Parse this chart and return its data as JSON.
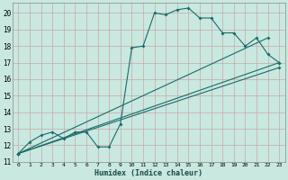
{
  "xlabel": "Humidex (Indice chaleur)",
  "bg_color": "#c8e8e0",
  "grid_color": "#b0c8c0",
  "line_color": "#1a6b6b",
  "xlim": [
    -0.5,
    23.5
  ],
  "ylim": [
    11,
    20.6
  ],
  "xticks": [
    0,
    1,
    2,
    3,
    4,
    5,
    6,
    7,
    8,
    9,
    10,
    11,
    12,
    13,
    14,
    15,
    16,
    17,
    18,
    19,
    20,
    21,
    22,
    23
  ],
  "yticks": [
    11,
    12,
    13,
    14,
    15,
    16,
    17,
    18,
    19,
    20
  ],
  "series_main": {
    "x": [
      0,
      1,
      2,
      3,
      4,
      5,
      6,
      7,
      8,
      9,
      10,
      11,
      12,
      13,
      14,
      15,
      16,
      17,
      18,
      19,
      20,
      21,
      22,
      23
    ],
    "y": [
      11.5,
      12.2,
      12.6,
      12.8,
      12.4,
      12.8,
      12.8,
      11.9,
      11.9,
      13.3,
      17.9,
      18.0,
      20.0,
      19.9,
      20.2,
      20.3,
      19.7,
      19.7,
      18.8,
      18.8,
      18.0,
      18.5,
      17.5,
      17.0
    ]
  },
  "series_lines": [
    {
      "x": [
        0,
        22
      ],
      "y": [
        11.5,
        18.5
      ]
    },
    {
      "x": [
        0,
        23
      ],
      "y": [
        11.5,
        17.0
      ]
    },
    {
      "x": [
        0,
        23
      ],
      "y": [
        11.5,
        16.7
      ]
    }
  ]
}
